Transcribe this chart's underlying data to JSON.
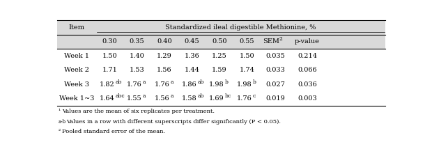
{
  "title": "Standardized ileal digestible Methionine, %",
  "col_headers": [
    "0.30",
    "0.35",
    "0.40",
    "0.45",
    "0.50",
    "0.55",
    "SEM2",
    "p-value"
  ],
  "row_labels": [
    "Week 1",
    "Week 2",
    "Week 3",
    "Week 1~3"
  ],
  "rows": [
    [
      "1.50",
      "1.40",
      "1.29",
      "1.36",
      "1.25",
      "1.50",
      "0.035",
      "0.214"
    ],
    [
      "1.71",
      "1.53",
      "1.56",
      "1.44",
      "1.59",
      "1.74",
      "0.033",
      "0.066"
    ],
    [
      "1.82ab",
      "1.76a",
      "1.76a",
      "1.86ab",
      "1.98b",
      "1.98b",
      "0.027",
      "0.036"
    ],
    [
      "1.64abc",
      "1.55a",
      "1.56a",
      "1.58ab",
      "1.69bc",
      "1.76c",
      "0.019",
      "0.003"
    ]
  ],
  "superscripts": [
    [
      "",
      "",
      "",
      "",
      "",
      "",
      "",
      ""
    ],
    [
      "",
      "",
      "",
      "",
      "",
      "",
      "",
      ""
    ],
    [
      "ab",
      "a",
      "a",
      "ab",
      "b",
      "b",
      "",
      ""
    ],
    [
      "abc",
      "a",
      "a",
      "ab",
      "bc",
      "c",
      "",
      ""
    ]
  ],
  "base_values": [
    [
      "1.50",
      "1.40",
      "1.29",
      "1.36",
      "1.25",
      "1.50",
      "0.035",
      "0.214"
    ],
    [
      "1.71",
      "1.53",
      "1.56",
      "1.44",
      "1.59",
      "1.74",
      "0.033",
      "0.066"
    ],
    [
      "1.82",
      "1.76",
      "1.76",
      "1.86",
      "1.98",
      "1.98",
      "0.027",
      "0.036"
    ],
    [
      "1.64",
      "1.55",
      "1.56",
      "1.58",
      "1.69",
      "1.76",
      "0.019",
      "0.003"
    ]
  ],
  "footnotes": [
    "1Values are the mean of six replicates per treatment.",
    "a-bValues in a row with different superscripts differ significantly (P < 0.05).",
    "2Pooled standard error of the mean."
  ],
  "header_bg": "#d9d9d9",
  "body_bg": "#ffffff",
  "font_size": 7.0,
  "footnote_font_size": 6.0
}
